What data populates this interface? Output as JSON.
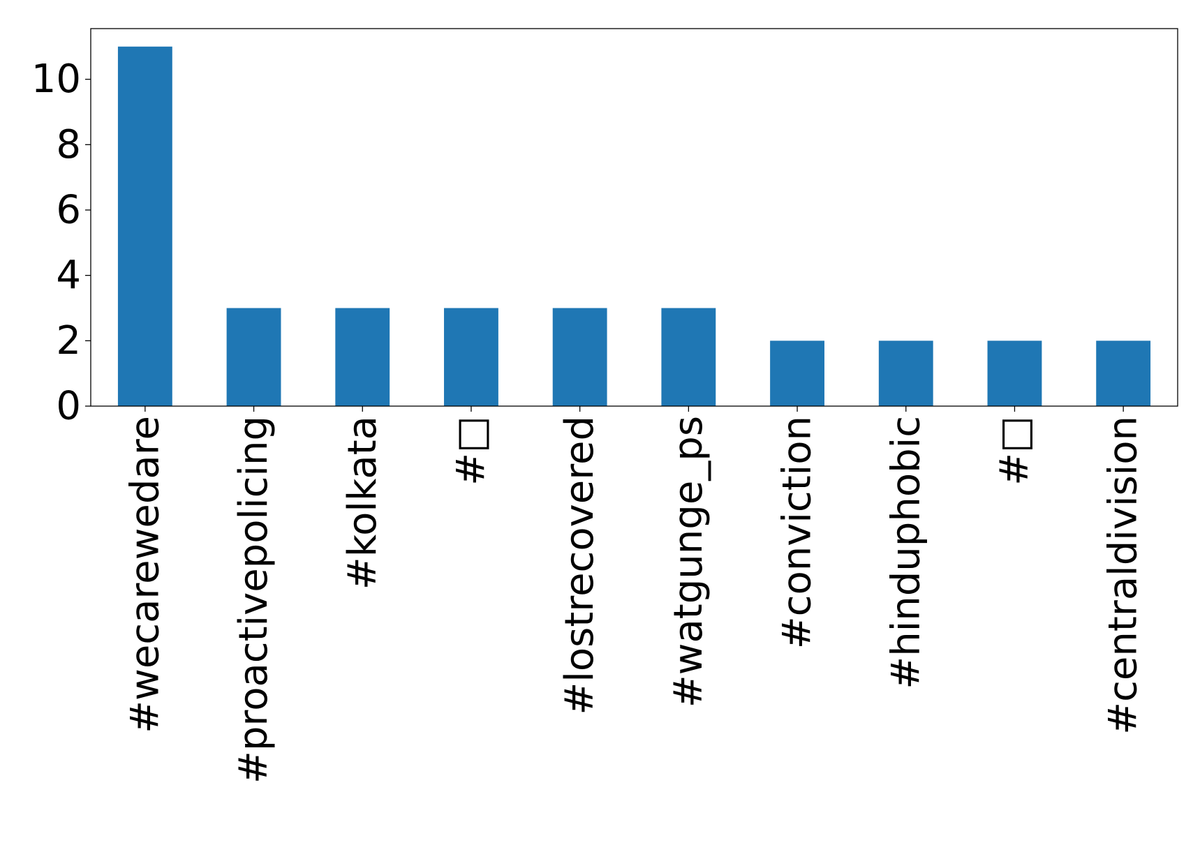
{
  "chart_data": {
    "type": "bar",
    "title": "",
    "xlabel": "",
    "ylabel": "",
    "categories": [
      "#wecarewedare",
      "#proactivepolicing",
      "#kolkata",
      "#□",
      "#lostrecovered",
      "#watgunge_ps",
      "#conviction",
      "#hinduphobic",
      "#□",
      "#centraldivision"
    ],
    "values": [
      11,
      3,
      3,
      3,
      3,
      3,
      2,
      2,
      2,
      2
    ],
    "ylim": [
      0,
      11.55
    ],
    "yticks": [
      0,
      2,
      4,
      6,
      8,
      10
    ],
    "grid": false,
    "legend": "none",
    "colors": {
      "bar": "#1f77b4",
      "axis": "#000000",
      "background": "#ffffff"
    }
  }
}
